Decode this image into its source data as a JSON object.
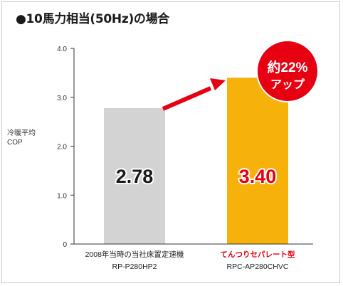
{
  "title": "●10馬力相当(50Hz)の場合",
  "colors": {
    "axis": "#333333",
    "bar_grey": "#d3d3d3",
    "bar_orange": "#f6b10a",
    "value_red": "#e60012",
    "badge": "#e60012",
    "arrow": "#e60012",
    "label_red": "#e60012"
  },
  "badge": {
    "line1": "約22%",
    "line2": "アップ"
  },
  "chart_data": {
    "type": "bar",
    "ylabel": [
      "冷暖平均",
      "COP"
    ],
    "ylim": [
      0,
      4.0
    ],
    "yticks": [
      "0",
      "1.0",
      "2.0",
      "3.0",
      "4.0"
    ],
    "bars": [
      {
        "label_line1": "2008年当時の当社床置定速機",
        "label_line2": "RP-P280HP2",
        "value": 2.78,
        "value_text": "2.78",
        "highlight": false
      },
      {
        "label_line1": "てんつりセパレート型",
        "label_line2": "RPC-AP280CHVC",
        "value": 3.4,
        "value_text": "3.40",
        "highlight": true
      }
    ]
  }
}
